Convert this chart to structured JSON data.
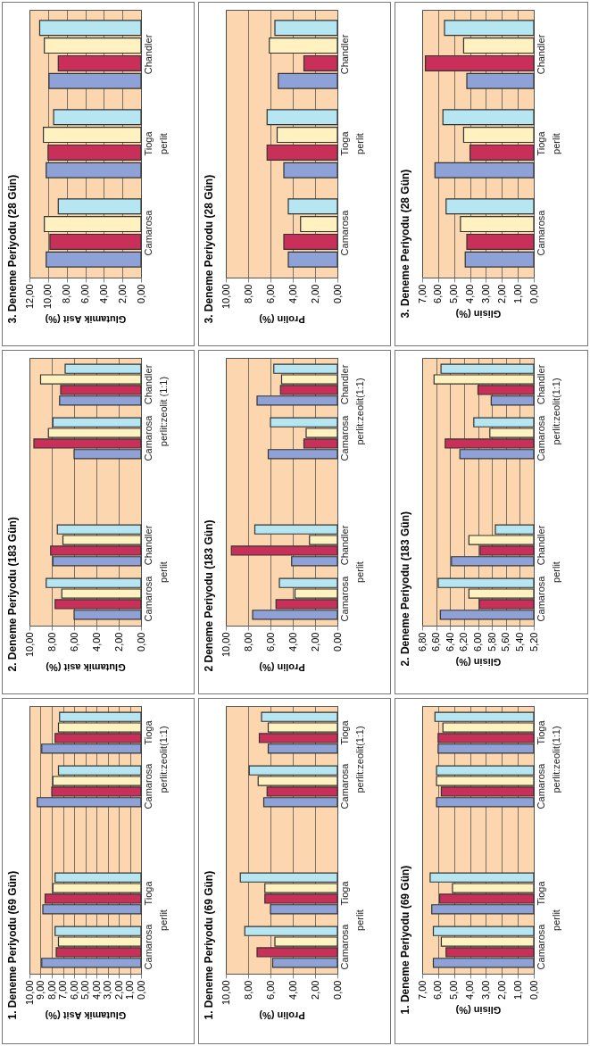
{
  "chart_data": [
    {
      "type": "bar",
      "orientation": "horizontal",
      "title": "3. Deneme Periyodu (28 Gün)",
      "xlabel": "Glutamik Asit (%)",
      "categories": [
        "Chandler",
        "Tioga",
        "Camarosa"
      ],
      "annotations": [
        "perlit"
      ],
      "xlim": [
        12,
        0
      ],
      "xticks": [
        {
          "value": 12,
          "label": "12,00"
        },
        {
          "value": 10,
          "label": "10,00"
        },
        {
          "value": 8,
          "label": "8,00"
        },
        {
          "value": 6,
          "label": "6,00"
        },
        {
          "value": 4,
          "label": "4,00"
        },
        {
          "value": 2,
          "label": "2,00"
        },
        {
          "value": 0,
          "label": "0,00"
        }
      ],
      "grid": "x",
      "series": [
        {
          "color": "#b6e6f2",
          "values": [
            10.9,
            9.4,
            8.9
          ]
        },
        {
          "color": "#fff2c0",
          "values": [
            10.4,
            10.5,
            10.4
          ]
        },
        {
          "color": "#c8305a",
          "values": [
            8.9,
            10.0,
            9.8
          ]
        },
        {
          "color": "#8ea2d8",
          "values": [
            9.9,
            10.2,
            10.2
          ]
        }
      ]
    },
    {
      "type": "bar",
      "orientation": "horizontal",
      "title": "3. Deneme Periyodu (28 Gün)",
      "xlabel": "Prolin (%)",
      "categories": [
        "Chandler",
        "Tioga",
        "Camarosa"
      ],
      "annotations": [
        "perlit"
      ],
      "xlim": [
        10,
        0
      ],
      "xticks": [
        {
          "value": 10,
          "label": "10,00"
        },
        {
          "value": 8,
          "label": "8,00"
        },
        {
          "value": 6,
          "label": "6,00"
        },
        {
          "value": 4,
          "label": "4,00"
        },
        {
          "value": 2,
          "label": "2,00"
        },
        {
          "value": 0,
          "label": "0,00"
        }
      ],
      "grid": "x",
      "series": [
        {
          "color": "#b6e6f2",
          "values": [
            5.6,
            6.3,
            4.4
          ]
        },
        {
          "color": "#fff2c0",
          "values": [
            6.1,
            5.4,
            3.3
          ]
        },
        {
          "color": "#c8305a",
          "values": [
            3.0,
            6.3,
            4.8
          ]
        },
        {
          "color": "#8ea2d8",
          "values": [
            5.3,
            4.8,
            4.4
          ]
        }
      ]
    },
    {
      "type": "bar",
      "orientation": "horizontal",
      "title": "3. Deneme Periyodu (28 Gün)",
      "xlabel": "Glisin (%)",
      "categories": [
        "Chandler",
        "Tioga",
        "Camarosa"
      ],
      "annotations": [
        "perlit"
      ],
      "xlim": [
        7,
        0
      ],
      "xticks": [
        {
          "value": 7,
          "label": "7,00"
        },
        {
          "value": 6,
          "label": "6,00"
        },
        {
          "value": 5,
          "label": "5,00"
        },
        {
          "value": 4,
          "label": "4,00"
        },
        {
          "value": 3,
          "label": "3,00"
        },
        {
          "value": 2,
          "label": "2,00"
        },
        {
          "value": 1,
          "label": "1,00"
        },
        {
          "value": 0,
          "label": "0,00"
        }
      ],
      "grid": "x",
      "series": [
        {
          "color": "#b6e6f2",
          "values": [
            5.6,
            5.7,
            5.5
          ]
        },
        {
          "color": "#fff2c0",
          "values": [
            4.4,
            4.4,
            4.6
          ]
        },
        {
          "color": "#c8305a",
          "values": [
            6.8,
            4.0,
            4.2
          ]
        },
        {
          "color": "#8ea2d8",
          "values": [
            4.2,
            6.2,
            4.3
          ]
        }
      ]
    },
    {
      "type": "bar",
      "orientation": "horizontal",
      "title": "2. Deneme Periyodu (183 Gün)",
      "xlabel": "Glutamik asit (%)",
      "categories": [
        "Chandler",
        "Camarosa",
        null,
        "Chandler",
        "Camarosa"
      ],
      "annotations": [
        "perlit:zeolit (1:1)",
        "perlit"
      ],
      "xlim": [
        10,
        0
      ],
      "xticks": [
        {
          "value": 10,
          "label": "10,00"
        },
        {
          "value": 8,
          "label": "8,00"
        },
        {
          "value": 6,
          "label": "6,00"
        },
        {
          "value": 4,
          "label": "4,00"
        },
        {
          "value": 2,
          "label": "2,00"
        },
        {
          "value": 0,
          "label": "0,00"
        }
      ],
      "grid": "x",
      "series": [
        {
          "color": "#b6e6f2",
          "values": [
            6.8,
            7.9,
            null,
            7.5,
            8.5
          ]
        },
        {
          "color": "#fff2c0",
          "values": [
            9.0,
            8.3,
            null,
            7.0,
            7.1
          ]
        },
        {
          "color": "#c8305a",
          "values": [
            7.2,
            9.6,
            null,
            8.1,
            7.7
          ]
        },
        {
          "color": "#8ea2d8",
          "values": [
            7.3,
            6.0,
            null,
            7.9,
            6.0
          ]
        }
      ]
    },
    {
      "type": "bar",
      "orientation": "horizontal",
      "title": "2 Deneme Periyodu (183 Gün)",
      "xlabel": "Prolin (%)",
      "categories": [
        "Chandler",
        "Camarosa",
        null,
        "Chandler",
        "Camarosa"
      ],
      "annotations": [
        "perlit:zeolit(1:1)",
        "perlit"
      ],
      "xlim": [
        10,
        0
      ],
      "xticks": [
        {
          "value": 10,
          "label": "10,00"
        },
        {
          "value": 8,
          "label": "8,00"
        },
        {
          "value": 6,
          "label": "6,00"
        },
        {
          "value": 4,
          "label": "4,00"
        },
        {
          "value": 2,
          "label": "2,00"
        },
        {
          "value": 0,
          "label": "0,00"
        }
      ],
      "grid": "x",
      "series": [
        {
          "color": "#b6e6f2",
          "values": [
            5.7,
            6.0,
            null,
            7.4,
            5.2
          ]
        },
        {
          "color": "#fff2c0",
          "values": [
            5.0,
            2.8,
            null,
            2.5,
            3.8
          ]
        },
        {
          "color": "#c8305a",
          "values": [
            5.1,
            3.0,
            null,
            9.5,
            5.5
          ]
        },
        {
          "color": "#8ea2d8",
          "values": [
            7.2,
            6.2,
            null,
            4.1,
            7.6
          ]
        }
      ]
    },
    {
      "type": "bar",
      "orientation": "horizontal",
      "title": "2. Deneme Periyodu (183 Gün)",
      "xlabel": "Glisin (%)",
      "categories": [
        "Chandler",
        "Camarosa",
        null,
        "Chandler",
        "Camarosa"
      ],
      "annotations": [
        "perlit:zeolit(1:1)",
        "perlit"
      ],
      "xlim": [
        6.8,
        5.2
      ],
      "xticks": [
        {
          "value": 6.8,
          "label": "6,80"
        },
        {
          "value": 6.6,
          "label": "6,60"
        },
        {
          "value": 6.4,
          "label": "6,40"
        },
        {
          "value": 6.2,
          "label": "6,20"
        },
        {
          "value": 6.0,
          "label": "6,00"
        },
        {
          "value": 5.8,
          "label": "5,80"
        },
        {
          "value": 5.6,
          "label": "5,60"
        },
        {
          "value": 5.4,
          "label": "5,40"
        },
        {
          "value": 5.2,
          "label": "5,20"
        }
      ],
      "grid": "x",
      "series": [
        {
          "color": "#b6e6f2",
          "values": [
            6.53,
            6.06,
            null,
            5.75,
            6.57
          ]
        },
        {
          "color": "#fff2c0",
          "values": [
            6.63,
            5.83,
            null,
            6.13,
            6.13
          ]
        },
        {
          "color": "#c8305a",
          "values": [
            6.0,
            6.47,
            null,
            5.97,
            5.98
          ]
        },
        {
          "color": "#8ea2d8",
          "values": [
            5.81,
            6.26,
            null,
            6.38,
            6.54
          ]
        }
      ]
    },
    {
      "type": "bar",
      "orientation": "horizontal",
      "title": "1. Deneme Periyodu (69 Gün)",
      "xlabel": "Glutamik Asit (%)",
      "categories": [
        "Tioga",
        "Camarosa",
        null,
        "Tioga",
        "Camarosa"
      ],
      "annotations": [
        "perlit:zeolit(1:1)",
        "perlit"
      ],
      "xlim": [
        10,
        0
      ],
      "xticks": [
        {
          "value": 10,
          "label": "10,00"
        },
        {
          "value": 9,
          "label": "9,00"
        },
        {
          "value": 8,
          "label": "8,00"
        },
        {
          "value": 7,
          "label": "7,00"
        },
        {
          "value": 6,
          "label": "6,00"
        },
        {
          "value": 5,
          "label": "5,00"
        },
        {
          "value": 4,
          "label": "4,00"
        },
        {
          "value": 3,
          "label": "3,00"
        },
        {
          "value": 2,
          "label": "2,00"
        },
        {
          "value": 1,
          "label": "1,00"
        },
        {
          "value": 0,
          "label": "0,00"
        }
      ],
      "grid": "x",
      "series": [
        {
          "color": "#b6e6f2",
          "values": [
            7.3,
            7.4,
            null,
            7.7,
            7.7
          ]
        },
        {
          "color": "#fff2c0",
          "values": [
            7.4,
            7.9,
            null,
            7.9,
            7.4
          ]
        },
        {
          "color": "#c8305a",
          "values": [
            7.7,
            8.0,
            null,
            8.6,
            7.6
          ]
        },
        {
          "color": "#8ea2d8",
          "values": [
            8.9,
            9.3,
            null,
            8.8,
            8.9
          ]
        }
      ]
    },
    {
      "type": "bar",
      "orientation": "horizontal",
      "title": "1. Deneme Periyodu (69 Gün)",
      "xlabel": "Prolin (%)",
      "categories": [
        "Tioga",
        "Camarosa",
        null,
        "Tioga",
        "Camarosa"
      ],
      "annotations": [
        "perlit:zeolit(1:1)",
        "perlit"
      ],
      "xlim": [
        10,
        0
      ],
      "xticks": [
        {
          "value": 10,
          "label": "10,00"
        },
        {
          "value": 8,
          "label": "8,00"
        },
        {
          "value": 6,
          "label": "6,00"
        },
        {
          "value": 4,
          "label": "4,00"
        },
        {
          "value": 2,
          "label": "2,00"
        },
        {
          "value": 0,
          "label": "0,00"
        }
      ],
      "grid": "x",
      "series": [
        {
          "color": "#b6e6f2",
          "values": [
            6.8,
            7.9,
            null,
            8.7,
            8.3
          ]
        },
        {
          "color": "#fff2c0",
          "values": [
            6.2,
            7.1,
            null,
            6.5,
            5.6
          ]
        },
        {
          "color": "#c8305a",
          "values": [
            7.0,
            6.3,
            null,
            6.5,
            7.2
          ]
        },
        {
          "color": "#8ea2d8",
          "values": [
            6.2,
            6.6,
            null,
            6.0,
            5.8
          ]
        }
      ]
    },
    {
      "type": "bar",
      "orientation": "horizontal",
      "title": "1. Deneme Periyodu (69 Gün)",
      "xlabel": "Glisin (%)",
      "categories": [
        "Tioga",
        "Camarosa",
        null,
        "Tioga",
        "Camarosa"
      ],
      "annotations": [
        "perlit:zeolit(1:1)",
        "perlit"
      ],
      "xlim": [
        7,
        0
      ],
      "xticks": [
        {
          "value": 7,
          "label": "7,00"
        },
        {
          "value": 6,
          "label": "6,00"
        },
        {
          "value": 5,
          "label": "5,00"
        },
        {
          "value": 4,
          "label": "4,00"
        },
        {
          "value": 3,
          "label": "3,00"
        },
        {
          "value": 2,
          "label": "2,00"
        },
        {
          "value": 1,
          "label": "1,00"
        },
        {
          "value": 0,
          "label": "0,00"
        }
      ],
      "grid": "x",
      "series": [
        {
          "color": "#b6e6f2",
          "values": [
            6.2,
            6.1,
            null,
            6.5,
            6.3
          ]
        },
        {
          "color": "#fff2c0",
          "values": [
            5.7,
            6.1,
            null,
            5.1,
            5.8
          ]
        },
        {
          "color": "#c8305a",
          "values": [
            6.0,
            5.8,
            null,
            5.9,
            5.5
          ]
        },
        {
          "color": "#8ea2d8",
          "values": [
            6.0,
            6.1,
            null,
            6.4,
            6.3
          ]
        }
      ]
    }
  ]
}
